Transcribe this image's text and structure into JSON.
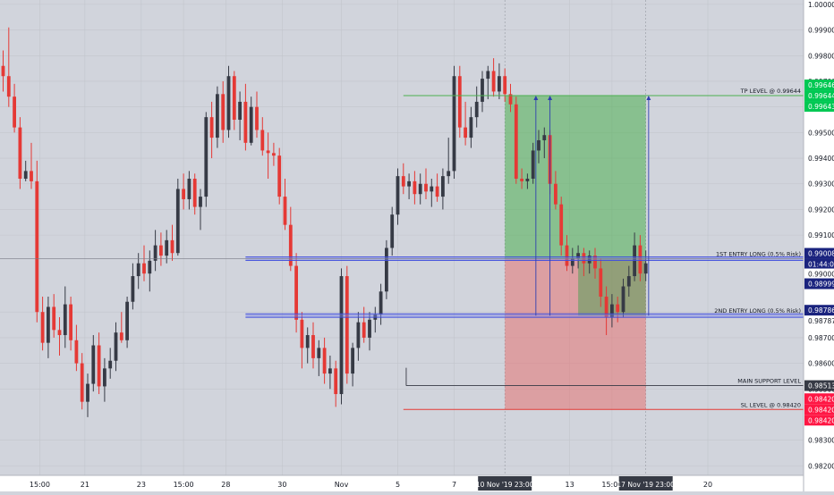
{
  "colors": {
    "background": "#d1d4dc",
    "axis_background": "#ffffff",
    "up_candle": "#363a45",
    "down_candle": "#e53935",
    "grid": "#c2c5cc",
    "entry_line": "#3d4bdb",
    "tp_line": "#4caf50",
    "sl_line": "#e53935",
    "support_line": "#363a45",
    "profit_zone": "rgba(76,175,80,0.55)",
    "loss_zone": "rgba(229,115,115,0.55)",
    "label_green": "#00c853",
    "label_red": "#ff1744",
    "label_navy": "#1a237e",
    "label_dark": "#363a45"
  },
  "chart_data": {
    "type": "candlestick",
    "y_axis": {
      "ylim": [
        0.98163,
        1.00017
      ],
      "ticks": [
        1.0,
        0.999,
        0.998,
        0.997,
        0.996,
        0.995,
        0.994,
        0.993,
        0.992,
        0.991,
        0.988,
        0.987,
        0.986,
        0.985,
        0.983,
        0.982
      ],
      "tick_labels": [
        "1.00000",
        "0.99900",
        "0.99800",
        "0.99700",
        "0.99600",
        "0.99500",
        "0.99400",
        "0.99300",
        "0.99200",
        "0.99100",
        "0.98800",
        "0.98700",
        "0.98600",
        "0.98500",
        "0.98300",
        "0.98200"
      ]
    },
    "x_axis": {
      "ticks": [
        {
          "label": "15:00",
          "bar": 6.5
        },
        {
          "label": "21",
          "bar": 14.5
        },
        {
          "label": "23",
          "bar": 24.5
        },
        {
          "label": "15:00",
          "bar": 32
        },
        {
          "label": "28",
          "bar": 39.5
        },
        {
          "label": "30",
          "bar": 49.5
        },
        {
          "label": "Nov",
          "bar": 60
        },
        {
          "label": "5",
          "bar": 70
        },
        {
          "label": "7",
          "bar": 80
        },
        {
          "label": "13",
          "bar": 100.5
        },
        {
          "label": "15:00",
          "bar": 108
        },
        {
          "label": "20",
          "bar": 125
        }
      ],
      "highlight_labels": [
        {
          "label": "10 Nov '19 23:00",
          "bar": 89
        },
        {
          "label": "17 Nov '19 23:00",
          "bar": 114
        }
      ]
    },
    "candles": [
      {
        "o": 0.9976,
        "h": 0.9982,
        "l": 0.9966,
        "c": 0.9972
      },
      {
        "o": 0.9972,
        "h": 0.9991,
        "l": 0.996,
        "c": 0.9964
      },
      {
        "o": 0.9964,
        "h": 0.9969,
        "l": 0.995,
        "c": 0.9952
      },
      {
        "o": 0.9952,
        "h": 0.9956,
        "l": 0.9928,
        "c": 0.9932
      },
      {
        "o": 0.9932,
        "h": 0.9939,
        "l": 0.9931,
        "c": 0.9935
      },
      {
        "o": 0.9935,
        "h": 0.9946,
        "l": 0.9928,
        "c": 0.9931
      },
      {
        "o": 0.9931,
        "h": 0.9939,
        "l": 0.9876,
        "c": 0.988
      },
      {
        "o": 0.988,
        "h": 0.9886,
        "l": 0.9865,
        "c": 0.9868
      },
      {
        "o": 0.9868,
        "h": 0.9886,
        "l": 0.9862,
        "c": 0.9882
      },
      {
        "o": 0.9882,
        "h": 0.9887,
        "l": 0.987,
        "c": 0.9873
      },
      {
        "o": 0.9873,
        "h": 0.9878,
        "l": 0.9863,
        "c": 0.9871
      },
      {
        "o": 0.9871,
        "h": 0.989,
        "l": 0.9866,
        "c": 0.9883
      },
      {
        "o": 0.9883,
        "h": 0.9886,
        "l": 0.9865,
        "c": 0.9869
      },
      {
        "o": 0.9869,
        "h": 0.9875,
        "l": 0.9857,
        "c": 0.986
      },
      {
        "o": 0.986,
        "h": 0.9864,
        "l": 0.9842,
        "c": 0.9845
      },
      {
        "o": 0.9845,
        "h": 0.9856,
        "l": 0.9839,
        "c": 0.9852
      },
      {
        "o": 0.9852,
        "h": 0.9871,
        "l": 0.9849,
        "c": 0.9867
      },
      {
        "o": 0.9867,
        "h": 0.9872,
        "l": 0.9848,
        "c": 0.9851
      },
      {
        "o": 0.9851,
        "h": 0.9862,
        "l": 0.9845,
        "c": 0.9858
      },
      {
        "o": 0.9858,
        "h": 0.9866,
        "l": 0.9854,
        "c": 0.9861
      },
      {
        "o": 0.9861,
        "h": 0.9876,
        "l": 0.9857,
        "c": 0.9872
      },
      {
        "o": 0.9872,
        "h": 0.988,
        "l": 0.9868,
        "c": 0.9869
      },
      {
        "o": 0.9869,
        "h": 0.9886,
        "l": 0.9866,
        "c": 0.9884
      },
      {
        "o": 0.9884,
        "h": 0.9899,
        "l": 0.9881,
        "c": 0.9894
      },
      {
        "o": 0.9894,
        "h": 0.9903,
        "l": 0.9889,
        "c": 0.9899
      },
      {
        "o": 0.9899,
        "h": 0.9906,
        "l": 0.9892,
        "c": 0.9895
      },
      {
        "o": 0.9895,
        "h": 0.9904,
        "l": 0.9888,
        "c": 0.99
      },
      {
        "o": 0.99,
        "h": 0.9912,
        "l": 0.9896,
        "c": 0.9906
      },
      {
        "o": 0.9906,
        "h": 0.9911,
        "l": 0.9898,
        "c": 0.9902
      },
      {
        "o": 0.9902,
        "h": 0.9912,
        "l": 0.9899,
        "c": 0.9908
      },
      {
        "o": 0.9908,
        "h": 0.9914,
        "l": 0.99,
        "c": 0.9903
      },
      {
        "o": 0.9903,
        "h": 0.9932,
        "l": 0.9902,
        "c": 0.9928
      },
      {
        "o": 0.9928,
        "h": 0.9934,
        "l": 0.992,
        "c": 0.9924
      },
      {
        "o": 0.9924,
        "h": 0.9935,
        "l": 0.992,
        "c": 0.9932
      },
      {
        "o": 0.9932,
        "h": 0.9934,
        "l": 0.9918,
        "c": 0.9921
      },
      {
        "o": 0.9921,
        "h": 0.9928,
        "l": 0.9912,
        "c": 0.9925
      },
      {
        "o": 0.9925,
        "h": 0.9958,
        "l": 0.9921,
        "c": 0.9956
      },
      {
        "o": 0.9956,
        "h": 0.9962,
        "l": 0.994,
        "c": 0.9948
      },
      {
        "o": 0.9948,
        "h": 0.9968,
        "l": 0.9944,
        "c": 0.9965
      },
      {
        "o": 0.9965,
        "h": 0.997,
        "l": 0.9946,
        "c": 0.9951
      },
      {
        "o": 0.9951,
        "h": 0.9976,
        "l": 0.9948,
        "c": 0.9972
      },
      {
        "o": 0.9972,
        "h": 0.9974,
        "l": 0.9951,
        "c": 0.9955
      },
      {
        "o": 0.9955,
        "h": 0.9966,
        "l": 0.9947,
        "c": 0.9962
      },
      {
        "o": 0.9962,
        "h": 0.9969,
        "l": 0.9943,
        "c": 0.9946
      },
      {
        "o": 0.9946,
        "h": 0.9964,
        "l": 0.9945,
        "c": 0.996
      },
      {
        "o": 0.996,
        "h": 0.9966,
        "l": 0.9948,
        "c": 0.9951
      },
      {
        "o": 0.9951,
        "h": 0.9956,
        "l": 0.9941,
        "c": 0.9943
      },
      {
        "o": 0.9943,
        "h": 0.995,
        "l": 0.9932,
        "c": 0.9942
      },
      {
        "o": 0.9942,
        "h": 0.9946,
        "l": 0.9937,
        "c": 0.9941
      },
      {
        "o": 0.9941,
        "h": 0.9944,
        "l": 0.9922,
        "c": 0.9925
      },
      {
        "o": 0.9925,
        "h": 0.9932,
        "l": 0.9912,
        "c": 0.9914
      },
      {
        "o": 0.9914,
        "h": 0.9921,
        "l": 0.9896,
        "c": 0.9898
      },
      {
        "o": 0.9898,
        "h": 0.9903,
        "l": 0.9872,
        "c": 0.9877
      },
      {
        "o": 0.9877,
        "h": 0.988,
        "l": 0.9858,
        "c": 0.9866
      },
      {
        "o": 0.9866,
        "h": 0.9874,
        "l": 0.986,
        "c": 0.9871
      },
      {
        "o": 0.9871,
        "h": 0.9876,
        "l": 0.9858,
        "c": 0.9862
      },
      {
        "o": 0.9862,
        "h": 0.9869,
        "l": 0.9855,
        "c": 0.9866
      },
      {
        "o": 0.9866,
        "h": 0.987,
        "l": 0.9852,
        "c": 0.9856
      },
      {
        "o": 0.9856,
        "h": 0.9863,
        "l": 0.985,
        "c": 0.9858
      },
      {
        "o": 0.9858,
        "h": 0.9861,
        "l": 0.9843,
        "c": 0.9848
      },
      {
        "o": 0.9848,
        "h": 0.9897,
        "l": 0.9844,
        "c": 0.9894
      },
      {
        "o": 0.9894,
        "h": 0.9898,
        "l": 0.9852,
        "c": 0.9856
      },
      {
        "o": 0.9856,
        "h": 0.9868,
        "l": 0.9851,
        "c": 0.9866
      },
      {
        "o": 0.9866,
        "h": 0.988,
        "l": 0.9861,
        "c": 0.9876
      },
      {
        "o": 0.9876,
        "h": 0.9882,
        "l": 0.9868,
        "c": 0.987
      },
      {
        "o": 0.987,
        "h": 0.988,
        "l": 0.9865,
        "c": 0.9877
      },
      {
        "o": 0.9877,
        "h": 0.9882,
        "l": 0.9872,
        "c": 0.9879
      },
      {
        "o": 0.9879,
        "h": 0.9891,
        "l": 0.9875,
        "c": 0.9888
      },
      {
        "o": 0.9888,
        "h": 0.9908,
        "l": 0.9885,
        "c": 0.9905
      },
      {
        "o": 0.9905,
        "h": 0.9921,
        "l": 0.9902,
        "c": 0.9918
      },
      {
        "o": 0.9918,
        "h": 0.9936,
        "l": 0.9914,
        "c": 0.9933
      },
      {
        "o": 0.9933,
        "h": 0.9938,
        "l": 0.9926,
        "c": 0.9929
      },
      {
        "o": 0.9929,
        "h": 0.9934,
        "l": 0.9924,
        "c": 0.9931
      },
      {
        "o": 0.9931,
        "h": 0.9935,
        "l": 0.9922,
        "c": 0.9926
      },
      {
        "o": 0.9926,
        "h": 0.9934,
        "l": 0.9922,
        "c": 0.993
      },
      {
        "o": 0.993,
        "h": 0.9936,
        "l": 0.9924,
        "c": 0.9927
      },
      {
        "o": 0.9927,
        "h": 0.9932,
        "l": 0.9921,
        "c": 0.9929
      },
      {
        "o": 0.9929,
        "h": 0.9934,
        "l": 0.9923,
        "c": 0.9925
      },
      {
        "o": 0.9925,
        "h": 0.9936,
        "l": 0.992,
        "c": 0.9933
      },
      {
        "o": 0.9933,
        "h": 0.9948,
        "l": 0.993,
        "c": 0.9935
      },
      {
        "o": 0.9935,
        "h": 0.9976,
        "l": 0.9932,
        "c": 0.9972
      },
      {
        "o": 0.9972,
        "h": 0.9976,
        "l": 0.9948,
        "c": 0.9952
      },
      {
        "o": 0.9952,
        "h": 0.9962,
        "l": 0.9945,
        "c": 0.9948
      },
      {
        "o": 0.9948,
        "h": 0.996,
        "l": 0.9944,
        "c": 0.9956
      },
      {
        "o": 0.9956,
        "h": 0.9968,
        "l": 0.9952,
        "c": 0.9962
      },
      {
        "o": 0.9962,
        "h": 0.9974,
        "l": 0.9958,
        "c": 0.9971
      },
      {
        "o": 0.9971,
        "h": 0.9976,
        "l": 0.9963,
        "c": 0.9974
      },
      {
        "o": 0.9974,
        "h": 0.9979,
        "l": 0.9964,
        "c": 0.9966
      },
      {
        "o": 0.9966,
        "h": 0.9977,
        "l": 0.9963,
        "c": 0.9972
      },
      {
        "o": 0.9972,
        "h": 0.9975,
        "l": 0.9962,
        "c": 0.9965
      },
      {
        "o": 0.9965,
        "h": 0.9969,
        "l": 0.9958,
        "c": 0.9961
      },
      {
        "o": 0.9961,
        "h": 0.9964,
        "l": 0.993,
        "c": 0.9932
      },
      {
        "o": 0.9932,
        "h": 0.9936,
        "l": 0.9928,
        "c": 0.9931
      },
      {
        "o": 0.9931,
        "h": 0.9934,
        "l": 0.9928,
        "c": 0.9932
      },
      {
        "o": 0.9932,
        "h": 0.9946,
        "l": 0.993,
        "c": 0.9943
      },
      {
        "o": 0.9943,
        "h": 0.9951,
        "l": 0.9938,
        "c": 0.9947
      },
      {
        "o": 0.9947,
        "h": 0.9952,
        "l": 0.994,
        "c": 0.9949
      },
      {
        "o": 0.9949,
        "h": 0.9951,
        "l": 0.9926,
        "c": 0.993
      },
      {
        "o": 0.993,
        "h": 0.9935,
        "l": 0.992,
        "c": 0.9922
      },
      {
        "o": 0.9922,
        "h": 0.9925,
        "l": 0.9902,
        "c": 0.9906
      },
      {
        "o": 0.9906,
        "h": 0.991,
        "l": 0.9896,
        "c": 0.9898
      },
      {
        "o": 0.9898,
        "h": 0.9905,
        "l": 0.9895,
        "c": 0.9901
      },
      {
        "o": 0.9901,
        "h": 0.9906,
        "l": 0.9897,
        "c": 0.9903
      },
      {
        "o": 0.9903,
        "h": 0.9905,
        "l": 0.9894,
        "c": 0.9899
      },
      {
        "o": 0.9899,
        "h": 0.9904,
        "l": 0.9895,
        "c": 0.9902
      },
      {
        "o": 0.9902,
        "h": 0.9905,
        "l": 0.9893,
        "c": 0.9897
      },
      {
        "o": 0.9897,
        "h": 0.9901,
        "l": 0.9882,
        "c": 0.9886
      },
      {
        "o": 0.9886,
        "h": 0.989,
        "l": 0.9871,
        "c": 0.9878
      },
      {
        "o": 0.9878,
        "h": 0.9887,
        "l": 0.9874,
        "c": 0.9883
      },
      {
        "o": 0.9883,
        "h": 0.9886,
        "l": 0.9876,
        "c": 0.988
      },
      {
        "o": 0.988,
        "h": 0.9893,
        "l": 0.9878,
        "c": 0.989
      },
      {
        "o": 0.989,
        "h": 0.9898,
        "l": 0.9886,
        "c": 0.9894
      },
      {
        "o": 0.9894,
        "h": 0.9911,
        "l": 0.9892,
        "c": 0.9906
      },
      {
        "o": 0.9906,
        "h": 0.991,
        "l": 0.9892,
        "c": 0.9895
      },
      {
        "o": 0.9895,
        "h": 0.9904,
        "l": 0.9892,
        "c": 0.9899
      }
    ],
    "annotations": {
      "tp_label": "TP LEVEL @ 0.99644",
      "entry1_label": "1ST ENTRY LONG (0.5% Risk)",
      "entry2_label": "2ND ENTRY LONG (0.5% Risk)",
      "support_label": "MAIN SUPPORT LEVEL",
      "sl_label": "SL LEVEL @ 0.98420"
    },
    "levels": {
      "tp": 0.99644,
      "entry1": 0.99008,
      "entry2": 0.98786,
      "support": 0.98513,
      "sl": 0.9842,
      "crosshair": 0.99008
    },
    "boxes": {
      "profit": {
        "bar_from": 89,
        "bar_to": 114,
        "y_top": 0.99644,
        "y_bottom": 0.99008
      },
      "loss": {
        "bar_from": 89,
        "bar_to": 114,
        "y_top": 0.99008,
        "y_bottom": 0.9842
      },
      "profit2": {
        "bar_from": 102,
        "bar_to": 114,
        "y_top": 0.99008,
        "y_bottom": 0.98786
      }
    },
    "price_labels": [
      {
        "text": "0.99646",
        "value": 0.99646,
        "bg": "label_green"
      },
      {
        "text": "0.99644",
        "value": 0.99644,
        "bg": "label_green"
      },
      {
        "text": "0.99643",
        "value": 0.99643,
        "bg": "label_green"
      },
      {
        "text": "0.99008",
        "value": 0.99008,
        "bg": "label_navy"
      },
      {
        "text": "01:44:01",
        "value": 0.99008,
        "bg": "label_navy"
      },
      {
        "text": "0.99000",
        "value": 0.99,
        "bg": "axis"
      },
      {
        "text": "0.98999",
        "value": 0.98999,
        "bg": "label_navy"
      },
      {
        "text": "0.98786",
        "value": 0.98786,
        "bg": "label_navy"
      },
      {
        "text": "0.98787",
        "value": 0.98787,
        "bg": "axis"
      },
      {
        "text": "0.98513",
        "value": 0.98513,
        "bg": "label_dark"
      },
      {
        "text": "0.98420",
        "value": 0.9842,
        "bg": "label_red"
      },
      {
        "text": "0.98420",
        "value": 0.9842,
        "bg": "label_red"
      },
      {
        "text": "0.98420",
        "value": 0.9842,
        "bg": "label_red"
      }
    ]
  }
}
